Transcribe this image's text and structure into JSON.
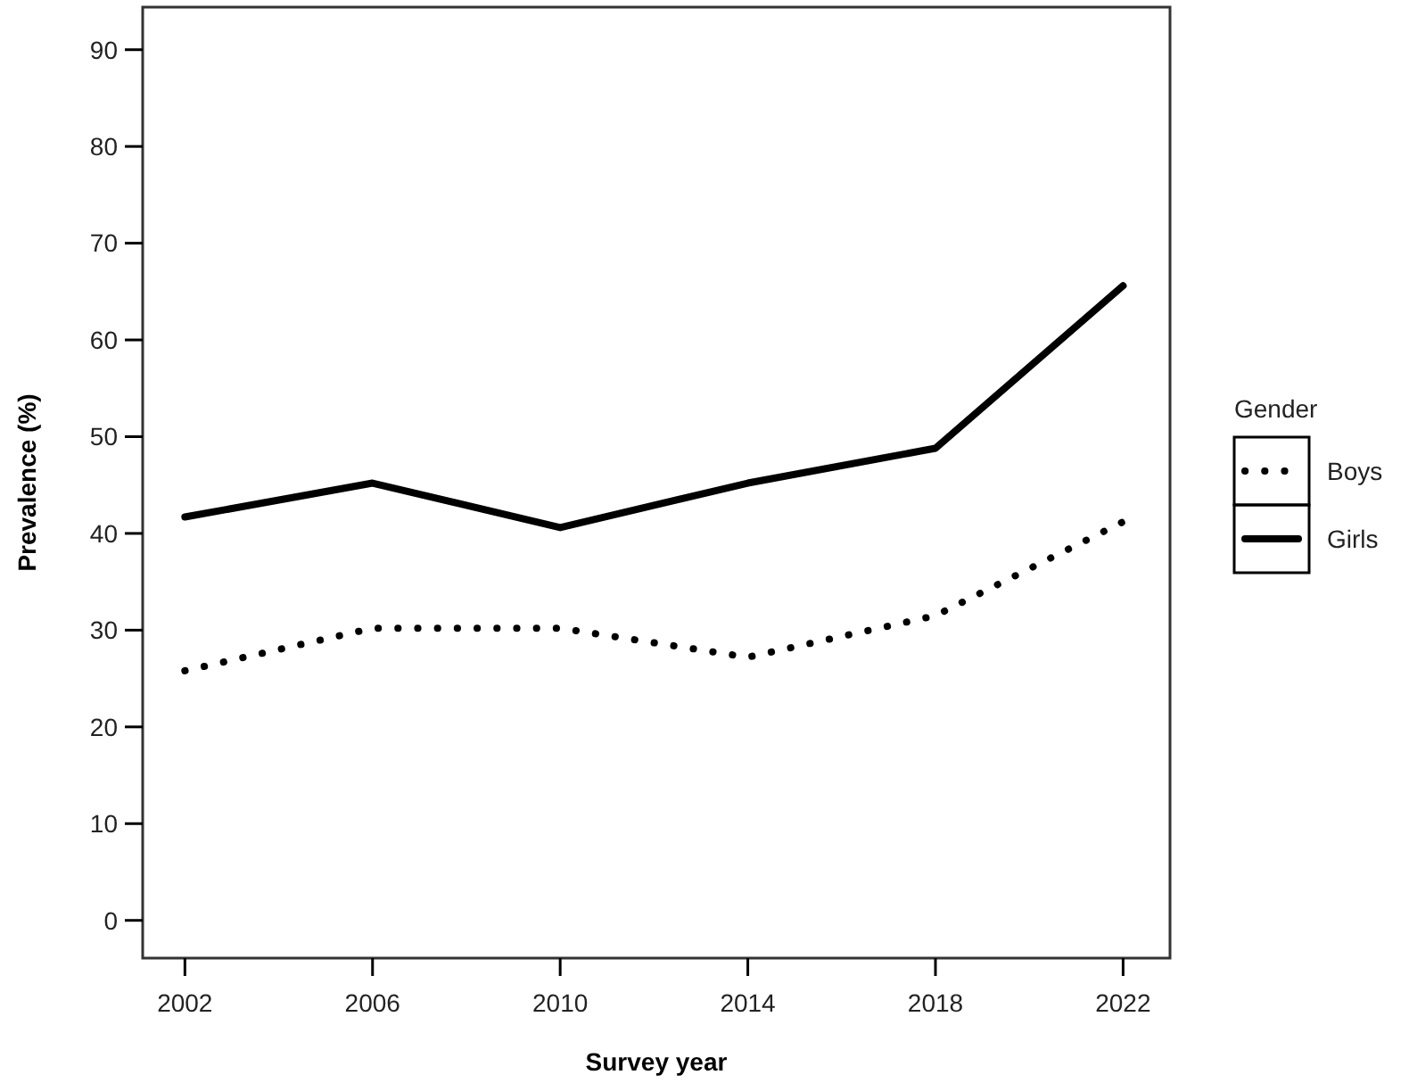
{
  "chart_data": {
    "type": "line",
    "xlabel": "Survey year",
    "ylabel": "Prevalence (%)",
    "legend_title": "Gender",
    "x": [
      2002,
      2006,
      2010,
      2014,
      2018,
      2022
    ],
    "xlim": [
      2001.1,
      2023
    ],
    "xticks": [
      2002,
      2006,
      2010,
      2014,
      2018,
      2022
    ],
    "ylim": [
      -3.9,
      94.4
    ],
    "yticks": [
      0,
      10,
      20,
      30,
      40,
      50,
      60,
      70,
      80,
      90
    ],
    "grid": false,
    "legend": "right",
    "marker": "none",
    "series": [
      {
        "name": "Boys",
        "color": "#000000",
        "line_style": "dotted",
        "values": [
          25.8,
          30.2,
          30.2,
          27.2,
          31.5,
          41.2
        ]
      },
      {
        "name": "Girls",
        "color": "#000000",
        "line_style": "solid",
        "values": [
          41.7,
          45.2,
          40.6,
          45.2,
          48.8,
          65.6
        ]
      }
    ]
  }
}
